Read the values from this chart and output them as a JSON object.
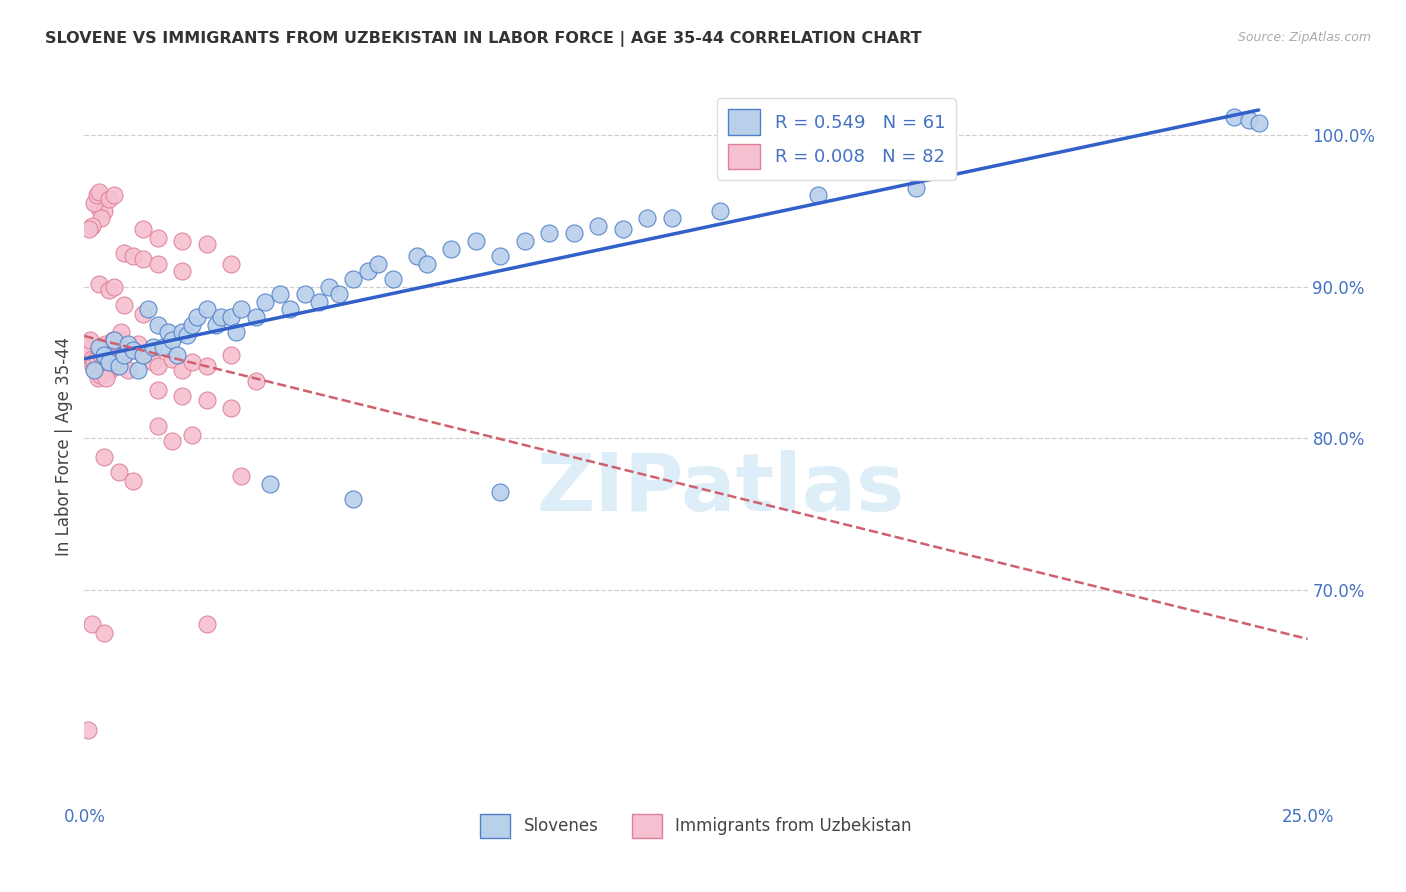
{
  "title": "SLOVENE VS IMMIGRANTS FROM UZBEKISTAN IN LABOR FORCE | AGE 35-44 CORRELATION CHART",
  "source": "Source: ZipAtlas.com",
  "ylabel": "In Labor Force | Age 35-44",
  "legend_blue_label": "R = 0.549   N = 61",
  "legend_pink_label": "R = 0.008   N = 82",
  "legend_bottom_blue": "Slovenes",
  "legend_bottom_pink": "Immigrants from Uzbekistan",
  "blue_face_color": "#b8d0ea",
  "pink_face_color": "#f5c0d0",
  "blue_edge_color": "#5080c8",
  "pink_edge_color": "#e08098",
  "blue_line_color": "#3060c8",
  "pink_line_color": "#d06070",
  "text_color": "#4472c4",
  "grid_color": "#d0d0d0",
  "xlim": [
    0,
    25
  ],
  "ylim": [
    56,
    103
  ],
  "x_tick_positions": [
    0,
    5,
    10,
    15,
    20,
    25
  ],
  "x_tick_labels": [
    "0.0%",
    "",
    "",
    "",
    "",
    "25.0%"
  ],
  "y_tick_positions": [
    70,
    80,
    90,
    100
  ],
  "y_tick_labels": [
    "70.0%",
    "80.0%",
    "90.0%",
    "100.0%"
  ],
  "blue_scatter": [
    [
      0.2,
      84.5
    ],
    [
      0.3,
      86.0
    ],
    [
      0.4,
      85.5
    ],
    [
      0.5,
      85.0
    ],
    [
      0.6,
      86.5
    ],
    [
      0.7,
      84.8
    ],
    [
      0.8,
      85.5
    ],
    [
      0.9,
      86.2
    ],
    [
      1.0,
      85.8
    ],
    [
      1.1,
      84.5
    ],
    [
      1.2,
      85.5
    ],
    [
      1.3,
      88.5
    ],
    [
      1.4,
      86.0
    ],
    [
      1.5,
      87.5
    ],
    [
      1.6,
      86.0
    ],
    [
      1.7,
      87.0
    ],
    [
      1.8,
      86.5
    ],
    [
      1.9,
      85.5
    ],
    [
      2.0,
      87.0
    ],
    [
      2.1,
      86.8
    ],
    [
      2.2,
      87.5
    ],
    [
      2.3,
      88.0
    ],
    [
      2.5,
      88.5
    ],
    [
      2.7,
      87.5
    ],
    [
      2.8,
      88.0
    ],
    [
      3.0,
      88.0
    ],
    [
      3.1,
      87.0
    ],
    [
      3.2,
      88.5
    ],
    [
      3.5,
      88.0
    ],
    [
      3.7,
      89.0
    ],
    [
      4.0,
      89.5
    ],
    [
      4.2,
      88.5
    ],
    [
      4.5,
      89.5
    ],
    [
      4.8,
      89.0
    ],
    [
      5.0,
      90.0
    ],
    [
      5.2,
      89.5
    ],
    [
      5.5,
      90.5
    ],
    [
      5.8,
      91.0
    ],
    [
      6.0,
      91.5
    ],
    [
      6.3,
      90.5
    ],
    [
      6.8,
      92.0
    ],
    [
      7.0,
      91.5
    ],
    [
      7.5,
      92.5
    ],
    [
      8.0,
      93.0
    ],
    [
      8.5,
      92.0
    ],
    [
      9.0,
      93.0
    ],
    [
      9.5,
      93.5
    ],
    [
      10.0,
      93.5
    ],
    [
      10.5,
      94.0
    ],
    [
      11.0,
      93.8
    ],
    [
      11.5,
      94.5
    ],
    [
      12.0,
      94.5
    ],
    [
      13.0,
      95.0
    ],
    [
      15.0,
      96.0
    ],
    [
      17.0,
      96.5
    ],
    [
      3.8,
      77.0
    ],
    [
      5.5,
      76.0
    ],
    [
      8.5,
      76.5
    ],
    [
      23.5,
      101.2
    ],
    [
      23.8,
      101.0
    ],
    [
      24.0,
      100.8
    ]
  ],
  "pink_scatter": [
    [
      0.05,
      85.5
    ],
    [
      0.08,
      86.0
    ],
    [
      0.1,
      85.8
    ],
    [
      0.12,
      86.5
    ],
    [
      0.15,
      85.2
    ],
    [
      0.18,
      84.8
    ],
    [
      0.2,
      85.0
    ],
    [
      0.22,
      84.5
    ],
    [
      0.25,
      85.3
    ],
    [
      0.28,
      84.0
    ],
    [
      0.3,
      85.8
    ],
    [
      0.32,
      84.2
    ],
    [
      0.35,
      85.5
    ],
    [
      0.38,
      84.8
    ],
    [
      0.4,
      85.0
    ],
    [
      0.42,
      86.2
    ],
    [
      0.45,
      85.5
    ],
    [
      0.48,
      84.8
    ],
    [
      0.5,
      85.0
    ],
    [
      0.52,
      84.5
    ],
    [
      0.55,
      85.8
    ],
    [
      0.58,
      86.5
    ],
    [
      0.6,
      85.2
    ],
    [
      0.62,
      84.8
    ],
    [
      0.65,
      85.0
    ],
    [
      0.7,
      86.5
    ],
    [
      0.75,
      87.0
    ],
    [
      0.8,
      85.5
    ],
    [
      0.85,
      85.8
    ],
    [
      0.9,
      84.5
    ],
    [
      1.0,
      85.8
    ],
    [
      1.1,
      86.2
    ],
    [
      1.2,
      85.5
    ],
    [
      1.4,
      85.0
    ],
    [
      1.5,
      84.8
    ],
    [
      1.8,
      85.2
    ],
    [
      2.0,
      84.5
    ],
    [
      2.2,
      85.0
    ],
    [
      2.5,
      84.8
    ],
    [
      3.0,
      85.5
    ],
    [
      0.3,
      95.2
    ],
    [
      0.4,
      95.0
    ],
    [
      0.2,
      95.5
    ],
    [
      0.35,
      94.5
    ],
    [
      0.15,
      94.0
    ],
    [
      0.1,
      93.8
    ],
    [
      0.25,
      96.0
    ],
    [
      0.3,
      96.2
    ],
    [
      0.5,
      95.8
    ],
    [
      0.6,
      96.0
    ],
    [
      1.2,
      93.8
    ],
    [
      1.5,
      93.2
    ],
    [
      2.0,
      93.0
    ],
    [
      2.5,
      92.8
    ],
    [
      3.0,
      91.5
    ],
    [
      0.8,
      92.2
    ],
    [
      1.0,
      92.0
    ],
    [
      1.2,
      91.8
    ],
    [
      1.5,
      91.5
    ],
    [
      2.0,
      91.0
    ],
    [
      0.3,
      90.2
    ],
    [
      0.5,
      89.8
    ],
    [
      0.6,
      90.0
    ],
    [
      0.8,
      88.8
    ],
    [
      1.2,
      88.2
    ],
    [
      1.5,
      83.2
    ],
    [
      2.0,
      82.8
    ],
    [
      2.5,
      82.5
    ],
    [
      3.0,
      82.0
    ],
    [
      3.5,
      83.8
    ],
    [
      1.5,
      80.8
    ],
    [
      1.8,
      79.8
    ],
    [
      2.2,
      80.2
    ],
    [
      0.4,
      78.8
    ],
    [
      0.7,
      77.8
    ],
    [
      1.0,
      77.2
    ],
    [
      3.2,
      77.5
    ],
    [
      0.15,
      67.8
    ],
    [
      0.4,
      67.2
    ],
    [
      2.5,
      67.8
    ],
    [
      0.08,
      60.8
    ],
    [
      0.45,
      84.0
    ]
  ]
}
